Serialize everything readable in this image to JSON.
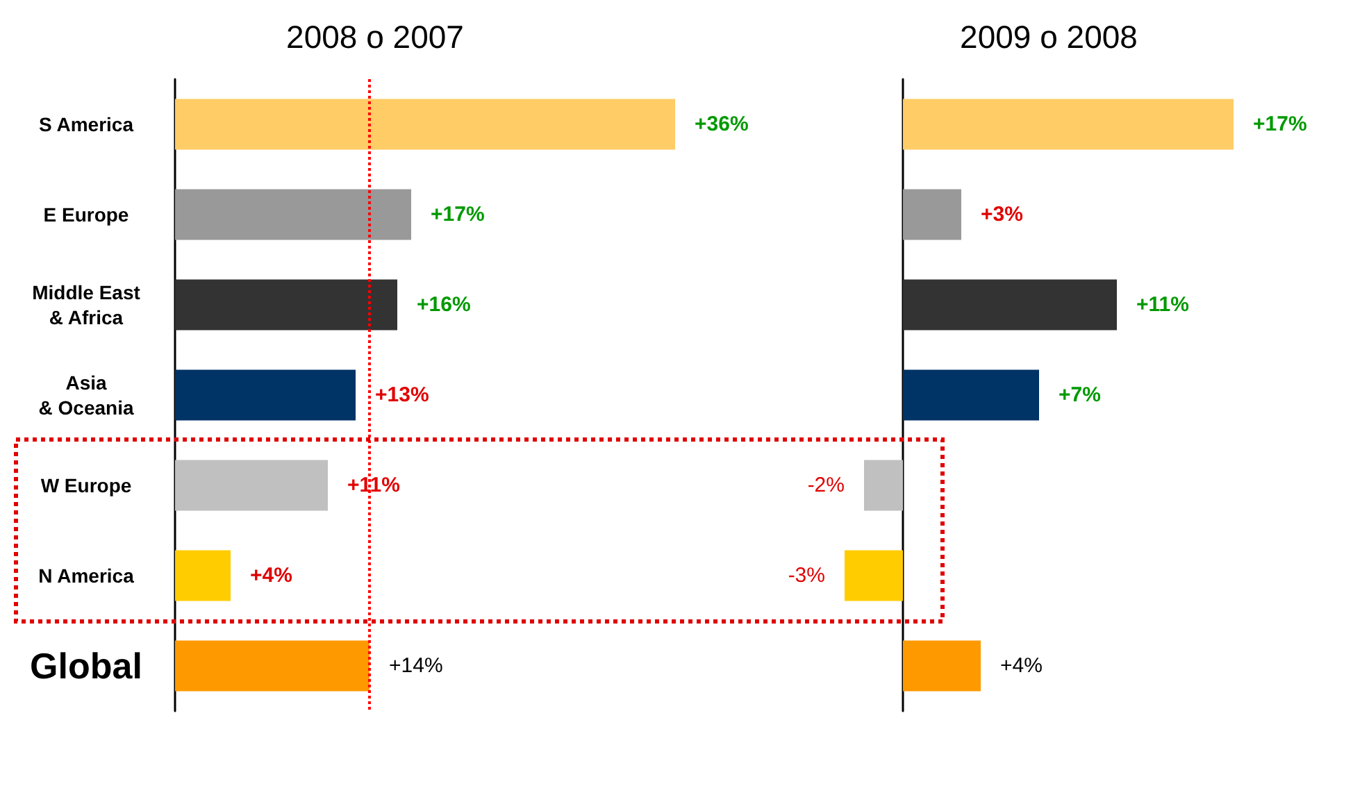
{
  "chart_data": [
    {
      "type": "bar",
      "orientation": "horizontal",
      "title": "2008 o 2007",
      "categories": [
        "S America",
        "E Europe",
        "Middle East\n& Africa",
        "Asia\n& Oceania",
        "W Europe",
        "N America",
        "Global"
      ],
      "values": [
        36,
        17,
        16,
        13,
        11,
        4,
        14
      ],
      "colors": [
        "#ffcc66",
        "#999999",
        "#333333",
        "#003366",
        "#c0c0c0",
        "#ffcc00",
        "#ff9900"
      ],
      "value_labels": [
        "+36%",
        "+17%",
        "+16%",
        "+13%",
        "+11%",
        "+4%",
        "+14%"
      ],
      "tick_labels": "y",
      "ref_lines": [
        {
          "axis": "x",
          "value": 14,
          "color": "#ff0000",
          "line_style": "dotted"
        }
      ]
    },
    {
      "type": "bar",
      "orientation": "horizontal",
      "title": "2009 o 2008",
      "categories": [
        null,
        null,
        null,
        null,
        null,
        null,
        null
      ],
      "values": [
        17,
        3,
        11,
        7,
        -2,
        -3,
        4
      ],
      "colors": [
        "#ffcc66",
        "#999999",
        "#333333",
        "#003366",
        "#c0c0c0",
        "#ffcc00",
        "#ff9900"
      ],
      "value_labels": [
        "+17%",
        "+3%",
        "+11%",
        "+7%",
        "-2%",
        "-3%",
        "+4%"
      ],
      "tick_labels": false
    }
  ]
}
